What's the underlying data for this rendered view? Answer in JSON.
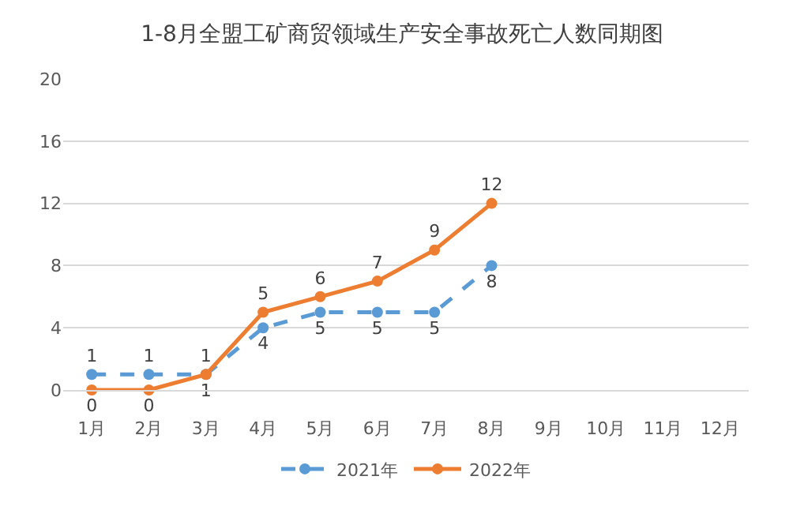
{
  "chart_data": {
    "type": "line",
    "title": "1-8月全盟工矿商贸领域生产安全事故死亡人数同期图",
    "categories": [
      "1月",
      "2月",
      "3月",
      "4月",
      "5月",
      "6月",
      "7月",
      "8月",
      "9月",
      "10月",
      "11月",
      "12月"
    ],
    "series": [
      {
        "name": "2021年",
        "color": "#5b9bd5",
        "line_style": "dashed",
        "values": [
          1,
          1,
          1,
          4,
          5,
          5,
          5,
          8,
          null,
          null,
          null,
          null
        ]
      },
      {
        "name": "2022年",
        "color": "#ed7d31",
        "line_style": "solid",
        "values": [
          0,
          0,
          1,
          5,
          6,
          7,
          9,
          12,
          null,
          null,
          null,
          null
        ]
      }
    ],
    "ylim": [
      0,
      20
    ],
    "yticks": [
      0,
      4,
      8,
      12,
      16,
      20
    ],
    "grid": "y",
    "legend": "bottom",
    "marker": "circle",
    "data_labels": true
  }
}
